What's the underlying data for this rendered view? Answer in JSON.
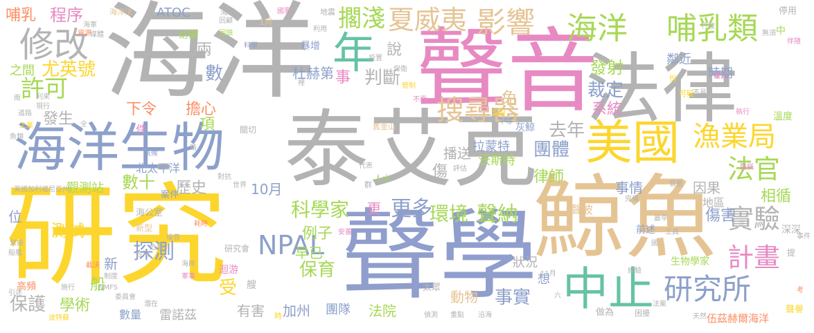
{
  "words": [
    {
      "text": "研究",
      "color": "#fcd62d"
    },
    {
      "text": "聲學",
      "color": "#8f9ecc"
    },
    {
      "text": "海洋",
      "color": "#b3b3b3"
    },
    {
      "text": "聲音",
      "color": "#e78ac3"
    },
    {
      "text": "鯨魚",
      "color": "#e5c494"
    },
    {
      "text": "泰艾克",
      "color": "#b3b3b3"
    },
    {
      "text": "法律",
      "color": "#b3b3b3"
    },
    {
      "text": "海洋生物",
      "color": "#8da0cb"
    },
    {
      "text": "美國",
      "color": "#fcd62d"
    },
    {
      "text": "中止",
      "color": "#66c2a5"
    },
    {
      "text": "年",
      "color": "#66c2a5"
    },
    {
      "text": "海洋",
      "color": "#a6d854"
    },
    {
      "text": "哺乳類",
      "color": "#a6d854"
    },
    {
      "text": "修改",
      "color": "#b3b3b3"
    },
    {
      "text": "搜尋器",
      "color": "#e5c494"
    },
    {
      "text": "夏威夷",
      "color": "#e5c494"
    },
    {
      "text": "影響",
      "color": "#e5c494"
    },
    {
      "text": "擱淺",
      "color": "#a6d854"
    },
    {
      "text": "漁業局",
      "color": "#fcd62d"
    },
    {
      "text": "法官",
      "color": "#a6d854"
    },
    {
      "text": "研究所",
      "color": "#8da0cb"
    },
    {
      "text": "實驗",
      "color": "#b3b3b3"
    },
    {
      "text": "計畫",
      "color": "#e78ac3"
    },
    {
      "text": "NPAL",
      "color": "#8da0cb"
    },
    {
      "text": "許可",
      "color": "#a6d854"
    },
    {
      "text": "程序",
      "color": "#e78ac3"
    },
    {
      "text": "哺乳",
      "color": "#fc8d62"
    },
    {
      "text": "ATOC",
      "color": "#8da0cb"
    },
    {
      "text": "尤英號",
      "color": "#fcd62d"
    },
    {
      "text": "之間",
      "color": "#a6d854"
    },
    {
      "text": "兩",
      "color": "#b3b3b3"
    },
    {
      "text": "數",
      "color": "#8da0cb"
    },
    {
      "text": "杜赫第",
      "color": "#8da0cb"
    },
    {
      "text": "說",
      "color": "#b3b3b3"
    },
    {
      "text": "事",
      "color": "#e78ac3"
    },
    {
      "text": "判斷",
      "color": "#b3b3b3"
    },
    {
      "text": "裁定",
      "color": "#8da0cb"
    },
    {
      "text": "發射",
      "color": "#a6d854"
    },
    {
      "text": "免",
      "color": "#e5c494"
    },
    {
      "text": "系統",
      "color": "#e78ac3"
    },
    {
      "text": "去年",
      "color": "#b3b3b3"
    },
    {
      "text": "團體",
      "color": "#8da0cb"
    },
    {
      "text": "下令",
      "color": "#fc8d62"
    },
    {
      "text": "擔心",
      "color": "#fc8d62"
    },
    {
      "text": "發生",
      "color": "#b3b3b3"
    },
    {
      "text": "項",
      "color": "#a6d854"
    },
    {
      "text": "件",
      "color": "#e78ac3"
    },
    {
      "text": "北太平洋",
      "color": "#8da0cb"
    },
    {
      "text": "數十",
      "color": "#a6d854"
    },
    {
      "text": "觀測站",
      "color": "#a6d854"
    },
    {
      "text": "歷史",
      "color": "#b3b3b3"
    },
    {
      "text": "10月",
      "color": "#8da0cb"
    },
    {
      "text": "科學家",
      "color": "#a6d854"
    },
    {
      "text": "更",
      "color": "#e78ac3"
    },
    {
      "text": "更多",
      "color": "#8da0cb"
    },
    {
      "text": "環境",
      "color": "#a6d854"
    },
    {
      "text": "聲納",
      "color": "#a6d854"
    },
    {
      "text": "拉蒙特",
      "color": "#8da0cb"
    },
    {
      "text": "播送",
      "color": "#b3b3b3"
    },
    {
      "text": "沃斯特",
      "color": "#a6d854"
    },
    {
      "text": "傷",
      "color": "#b3b3b3"
    },
    {
      "text": "律師",
      "color": "#a6d854"
    },
    {
      "text": "事情",
      "color": "#8da0cb"
    },
    {
      "text": "因果",
      "color": "#b3b3b3"
    },
    {
      "text": "傷害",
      "color": "#8da0cb"
    },
    {
      "text": "相循",
      "color": "#a6d854"
    },
    {
      "text": "位",
      "color": "#8da0cb"
    },
    {
      "text": "測試",
      "color": "#fcd62d"
    },
    {
      "text": "例子",
      "color": "#a6d854"
    },
    {
      "text": "早已",
      "color": "#a6d854"
    },
    {
      "text": "探測",
      "color": "#8da0cb"
    },
    {
      "text": "新",
      "color": "#8da0cb"
    },
    {
      "text": "保育",
      "color": "#a6d854"
    },
    {
      "text": "狀況",
      "color": "#b3b3b3"
    },
    {
      "text": "想",
      "color": "#8da0cb"
    },
    {
      "text": "事實",
      "color": "#8da0cb"
    },
    {
      "text": "動物",
      "color": "#e5c494"
    },
    {
      "text": "船",
      "color": "#a6d854"
    },
    {
      "text": "受",
      "color": "#fcd62d"
    },
    {
      "text": "保護",
      "color": "#b3b3b3"
    },
    {
      "text": "學術",
      "color": "#a6d854"
    },
    {
      "text": "數量",
      "color": "#8da0cb"
    },
    {
      "text": "雷諾茲",
      "color": "#b3b3b3"
    },
    {
      "text": "有害",
      "color": "#b3b3b3"
    },
    {
      "text": "加州",
      "color": "#8da0cb"
    },
    {
      "text": "團隊",
      "color": "#8da0cb"
    },
    {
      "text": "法院",
      "color": "#a6d854"
    },
    {
      "text": "時期",
      "color": "#8da0cb"
    },
    {
      "text": "鄰近",
      "color": "#8da0cb"
    },
    {
      "text": "溫度",
      "color": "#a6d854"
    },
    {
      "text": "灰鯨",
      "color": "#8da0cb"
    },
    {
      "text": "聲波",
      "color": "#e5c494"
    },
    {
      "text": "地區",
      "color": "#b3b3b3"
    },
    {
      "text": "生物學家",
      "color": "#a6d854"
    },
    {
      "text": "前述",
      "color": "#8da0cb"
    },
    {
      "text": "深深",
      "color": "#b3b3b3"
    },
    {
      "text": "研究會",
      "color": "#b3b3b3"
    },
    {
      "text": "海公室",
      "color": "#b3b3b3"
    },
    {
      "text": "新型",
      "color": "#e5c494"
    },
    {
      "text": "案件",
      "color": "#8da0cb"
    },
    {
      "text": "伍茲赫爾海洋",
      "color": "#fc8d62"
    },
    {
      "text": "迴游",
      "color": "#e78ac3"
    },
    {
      "text": "艘",
      "color": "#b3b3b3"
    },
    {
      "text": "太眾",
      "color": "#b3b3b3"
    },
    {
      "text": "做為",
      "color": "#b3b3b3"
    },
    {
      "text": "困擾",
      "color": "#b3b3b3"
    },
    {
      "text": "高頻",
      "color": "#fc8d62"
    },
    {
      "text": "妨礙",
      "color": "#a6d854"
    },
    {
      "text": "停用",
      "color": "#b3b3b3"
    },
    {
      "text": "暴增",
      "color": "#8da0cb"
    },
    {
      "text": "聲譽",
      "color": "#fcd62d"
    },
    {
      "text": "提",
      "color": "#b3b3b3"
    },
    {
      "text": "中",
      "color": "#a6d854"
    },
    {
      "text": "份",
      "color": "#fcd62d"
    },
    {
      "text": "可疑",
      "color": "#fcd62d"
    },
    {
      "text": "海洋法",
      "color": "#e5c494"
    },
    {
      "text": "海溫",
      "color": "#b3b3b3"
    },
    {
      "text": "地震",
      "color": "#b3b3b3"
    },
    {
      "text": "國家",
      "color": "#e78ac3"
    },
    {
      "text": "1月",
      "color": "#e5c494"
    },
    {
      "text": "利用",
      "color": "#b3b3b3"
    },
    {
      "text": "科學",
      "color": "#8da0cb"
    },
    {
      "text": "行政",
      "color": "#b3b3b3"
    },
    {
      "text": "關注",
      "color": "#e78ac3"
    },
    {
      "text": "不易",
      "color": "#b3b3b3"
    },
    {
      "text": "執行",
      "color": "#e78ac3"
    },
    {
      "text": "資源",
      "color": "#fc8d62"
    },
    {
      "text": "海軍",
      "color": "#b3b3b3"
    },
    {
      "text": "冬天",
      "color": "#b3b3b3"
    },
    {
      "text": "回頭",
      "color": "#a6d854"
    },
    {
      "text": "設置",
      "color": "#b3b3b3"
    },
    {
      "text": "保衛",
      "color": "#b3b3b3"
    },
    {
      "text": "管制",
      "color": "#fcd62d"
    },
    {
      "text": "不需",
      "color": "#e78ac3"
    },
    {
      "text": "說服",
      "color": "#fcd62d"
    },
    {
      "text": "平等",
      "color": "#8da0cb"
    },
    {
      "text": "舊金山",
      "color": "#e5c494"
    },
    {
      "text": "關切",
      "color": "#b3b3b3"
    },
    {
      "text": "代表",
      "color": "#b3b3b3"
    },
    {
      "text": "評估",
      "color": "#b3b3b3"
    },
    {
      "text": "群",
      "color": "#b3b3b3"
    },
    {
      "text": "人士",
      "color": "#a6d854"
    },
    {
      "text": "世界",
      "color": "#b3b3b3"
    },
    {
      "text": "對抗",
      "color": "#b3b3b3"
    },
    {
      "text": "相關",
      "color": "#b3b3b3"
    },
    {
      "text": "路",
      "color": "#b3b3b3"
    },
    {
      "text": "氣候",
      "color": "#8da0cb"
    },
    {
      "text": "美國加利福尼亞州",
      "color": "#b3b3b3"
    },
    {
      "text": "音量",
      "color": "#b3b3b3"
    },
    {
      "text": "聲稱",
      "color": "#e78ac3"
    },
    {
      "text": "完備",
      "color": "#b3b3b3"
    },
    {
      "text": "最早",
      "color": "#b3b3b3"
    },
    {
      "text": "工具",
      "color": "#b3b3b3"
    },
    {
      "text": "耗時",
      "color": "#fc8d62"
    },
    {
      "text": "安善",
      "color": "#e78ac3"
    },
    {
      "text": "緊接",
      "color": "#b3b3b3"
    },
    {
      "text": "截決",
      "color": "#fc8d62"
    },
    {
      "text": "危險",
      "color": "#b3b3b3"
    },
    {
      "text": "噪音",
      "color": "#b3b3b3"
    },
    {
      "text": "合法",
      "color": "#b3b3b3"
    },
    {
      "text": "制度",
      "color": "#b3b3b3"
    },
    {
      "text": "海岸",
      "color": "#b3b3b3"
    },
    {
      "text": "軍事",
      "color": "#e78ac3"
    },
    {
      "text": "NMFS",
      "color": "#b3b3b3"
    },
    {
      "text": "委員會",
      "color": "#b3b3b3"
    },
    {
      "text": "潛在",
      "color": "#b3b3b3"
    },
    {
      "text": "重點",
      "color": "#b3b3b3"
    },
    {
      "text": "偵測",
      "color": "#b3b3b3"
    },
    {
      "text": "沿海",
      "color": "#b3b3b3"
    },
    {
      "text": "法案",
      "color": "#b3b3b3"
    },
    {
      "text": "天然",
      "color": "#b3b3b3"
    },
    {
      "text": "考",
      "color": "#fc8d62"
    },
    {
      "text": "船艦",
      "color": "#b3b3b3"
    },
    {
      "text": "事件",
      "color": "#b3b3b3"
    },
    {
      "text": "11月",
      "color": "#b3b3b3"
    },
    {
      "text": "經驗",
      "color": "#b3b3b3"
    },
    {
      "text": "國",
      "color": "#b3b3b3"
    },
    {
      "text": "六",
      "color": "#b3b3b3"
    },
    {
      "text": "正",
      "color": "#b3b3b3"
    },
    {
      "text": "時",
      "color": "#fcd62d"
    },
    {
      "text": "無須",
      "color": "#b3b3b3"
    },
    {
      "text": "魚類",
      "color": "#b3b3b3"
    },
    {
      "text": "工業",
      "color": "#fcd62d"
    },
    {
      "text": "道路",
      "color": "#b3b3b3"
    },
    {
      "text": "全",
      "color": "#b3b3b3"
    },
    {
      "text": "利來",
      "color": "#b3b3b3"
    },
    {
      "text": "現行",
      "color": "#b3b3b3"
    },
    {
      "text": "裡",
      "color": "#b3b3b3"
    },
    {
      "text": "伴隨",
      "color": "#e78ac3"
    },
    {
      "text": "南",
      "color": "#b3b3b3"
    },
    {
      "text": "引述",
      "color": "#b3b3b3"
    },
    {
      "text": "波特蘇",
      "color": "#fcd62d"
    },
    {
      "text": "施行",
      "color": "#b3b3b3"
    },
    {
      "text": "媒體",
      "color": "#b3b3b3"
    },
    {
      "text": "回顧",
      "color": "#b3b3b3"
    }
  ]
}
